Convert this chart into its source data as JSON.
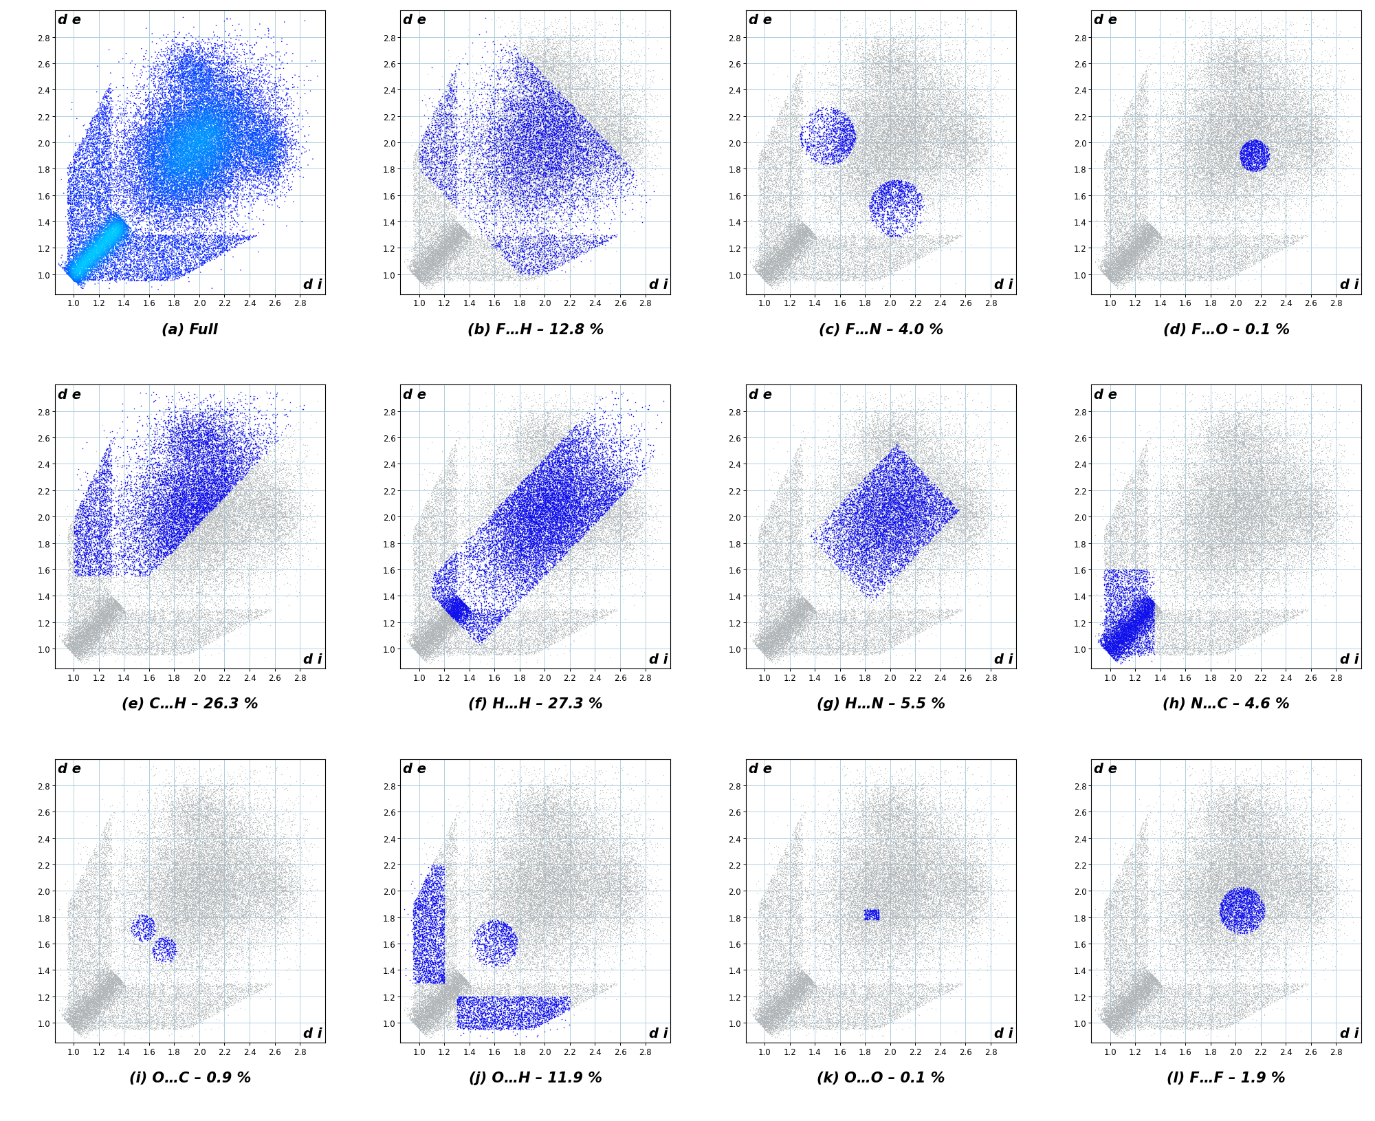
{
  "panels": [
    {
      "label": "(a) Full",
      "percentage": null,
      "color_mode": "full"
    },
    {
      "label": "(b) F…H – 12.8 %",
      "percentage": 12.8,
      "color_mode": "highlight"
    },
    {
      "label": "(c) F…N – 4.0 %",
      "percentage": 4.0,
      "color_mode": "highlight"
    },
    {
      "label": "(d) F…O – 0.1 %",
      "percentage": 0.1,
      "color_mode": "highlight"
    },
    {
      "label": "(e) C…H – 26.3 %",
      "percentage": 26.3,
      "color_mode": "highlight"
    },
    {
      "label": "(f) H…H – 27.3 %",
      "percentage": 27.3,
      "color_mode": "highlight"
    },
    {
      "label": "(g) H…N – 5.5 %",
      "percentage": 5.5,
      "color_mode": "highlight"
    },
    {
      "label": "(h) N…C – 4.6 %",
      "percentage": 4.6,
      "color_mode": "highlight"
    },
    {
      "label": "(i) O…C – 0.9 %",
      "percentage": 0.9,
      "color_mode": "highlight"
    },
    {
      "label": "(j) O…H – 11.9 %",
      "percentage": 11.9,
      "color_mode": "highlight"
    },
    {
      "label": "(k) O…O – 0.1 %",
      "percentage": 0.1,
      "color_mode": "highlight"
    },
    {
      "label": "(l) F…F – 1.9 %",
      "percentage": 1.9,
      "color_mode": "highlight"
    }
  ],
  "xlim": [
    0.85,
    3.0
  ],
  "ylim": [
    0.85,
    3.0
  ],
  "xticks": [
    1.0,
    1.2,
    1.4,
    1.6,
    1.8,
    2.0,
    2.2,
    2.4,
    2.6,
    2.8
  ],
  "yticks": [
    1.0,
    1.2,
    1.4,
    1.6,
    1.8,
    2.0,
    2.2,
    2.4,
    2.6,
    2.8
  ],
  "grid_color": "#b0cfe0",
  "seed": 42,
  "n_base": 40000,
  "n_highlight": 15000
}
